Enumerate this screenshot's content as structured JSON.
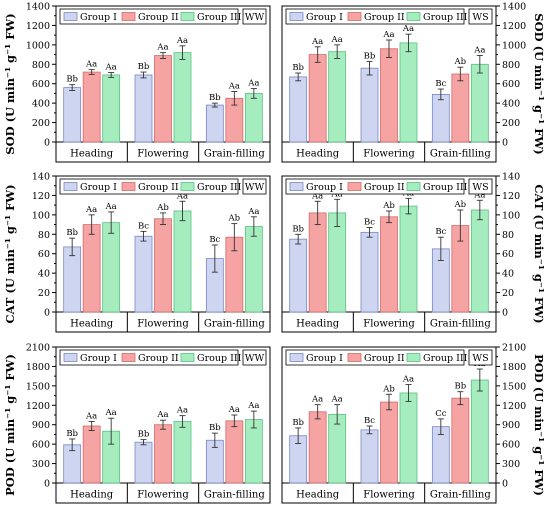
{
  "legend": [
    "Group I",
    "Group II",
    "Group III"
  ],
  "colors": {
    "bar_fills": [
      "#cdd5f0",
      "#f5a3a3",
      "#a5ecbe"
    ],
    "bar_strokes": [
      "#7b86c4",
      "#d46a6a",
      "#5cbf82"
    ]
  },
  "chart_data": [
    {
      "type": "bar",
      "id": "sod-ww",
      "tag": "WW",
      "ylabel": "SOD (U min⁻¹ g⁻¹ FW)",
      "ylim": [
        0,
        1400
      ],
      "yticks": [
        0,
        200,
        400,
        600,
        800,
        1000,
        1200,
        1400
      ],
      "categories": [
        "Heading",
        "Flowering",
        "Grain-filling"
      ],
      "series": [
        {
          "name": "Group I",
          "values": [
            560,
            690,
            380
          ],
          "errors": [
            30,
            30,
            20
          ],
          "labels": [
            "Bb",
            "Bb",
            "Bb"
          ]
        },
        {
          "name": "Group II",
          "values": [
            720,
            890,
            450
          ],
          "errors": [
            25,
            30,
            70
          ],
          "labels": [
            "Aa",
            "Aa",
            "Aa"
          ]
        },
        {
          "name": "Group III",
          "values": [
            690,
            920,
            500
          ],
          "errors": [
            25,
            70,
            50
          ],
          "labels": [
            "Aa",
            "Aa",
            "Aa"
          ]
        }
      ]
    },
    {
      "type": "bar",
      "id": "sod-ws",
      "tag": "WS",
      "ylabel": "SOD (U min⁻¹ g⁻¹ FW)",
      "ylim": [
        0,
        1400
      ],
      "yticks": [
        0,
        200,
        400,
        600,
        800,
        1000,
        1200,
        1400
      ],
      "categories": [
        "Heading",
        "Flowering",
        "Grain-filling"
      ],
      "series": [
        {
          "name": "Group I",
          "values": [
            670,
            760,
            490
          ],
          "errors": [
            40,
            70,
            55
          ],
          "labels": [
            "Bb",
            "Bb",
            "Bc"
          ]
        },
        {
          "name": "Group II",
          "values": [
            900,
            960,
            700
          ],
          "errors": [
            80,
            90,
            70
          ],
          "labels": [
            "Aa",
            "Aa",
            "Ab"
          ]
        },
        {
          "name": "Group III",
          "values": [
            930,
            1020,
            800
          ],
          "errors": [
            70,
            90,
            90
          ],
          "labels": [
            "Aa",
            "Aa",
            "Aa"
          ]
        }
      ]
    },
    {
      "type": "bar",
      "id": "cat-ww",
      "tag": "WW",
      "ylabel": "CAT (U min⁻¹ g⁻¹ FW)",
      "ylim": [
        0,
        140
      ],
      "yticks": [
        0,
        20,
        40,
        60,
        80,
        100,
        120,
        140
      ],
      "categories": [
        "Heading",
        "Flowering",
        "Grain-filling"
      ],
      "series": [
        {
          "name": "Group I",
          "values": [
            67,
            78,
            55
          ],
          "errors": [
            9,
            5,
            14
          ],
          "labels": [
            "Bb",
            "Bc",
            "Bc"
          ]
        },
        {
          "name": "Group II",
          "values": [
            90,
            96,
            77
          ],
          "errors": [
            10,
            6,
            14
          ],
          "labels": [
            "Aa",
            "Ab",
            "Ab"
          ]
        },
        {
          "name": "Group III",
          "values": [
            92,
            104,
            88
          ],
          "errors": [
            11,
            10,
            10
          ],
          "labels": [
            "Aa",
            "Aa",
            "Aa"
          ]
        }
      ]
    },
    {
      "type": "bar",
      "id": "cat-ws",
      "tag": "WS",
      "ylabel": "CAT (U min⁻¹ g⁻¹ FW)",
      "ylim": [
        0,
        140
      ],
      "yticks": [
        0,
        20,
        40,
        60,
        80,
        100,
        120,
        140
      ],
      "categories": [
        "Heading",
        "Flowering",
        "Grain-filling"
      ],
      "series": [
        {
          "name": "Group I",
          "values": [
            75,
            82,
            65
          ],
          "errors": [
            5,
            5,
            12
          ],
          "labels": [
            "Bb",
            "Bc",
            "Bc"
          ]
        },
        {
          "name": "Group II",
          "values": [
            102,
            98,
            89
          ],
          "errors": [
            12,
            6,
            16
          ],
          "labels": [
            "Aa",
            "Ab",
            "Ab"
          ]
        },
        {
          "name": "Group III",
          "values": [
            102,
            109,
            105
          ],
          "errors": [
            14,
            8,
            10
          ],
          "labels": [
            "Aa",
            "Aa",
            "Aa"
          ]
        }
      ]
    },
    {
      "type": "bar",
      "id": "pod-ww",
      "tag": "WW",
      "ylabel": "POD (U min⁻¹ g⁻¹ FW)",
      "ylim": [
        0,
        2100
      ],
      "yticks": [
        0,
        300,
        600,
        900,
        1200,
        1500,
        1800,
        2100
      ],
      "categories": [
        "Heading",
        "Flowering",
        "Grain-filling"
      ],
      "series": [
        {
          "name": "Group I",
          "values": [
            590,
            630,
            660
          ],
          "errors": [
            90,
            40,
            110
          ],
          "labels": [
            "Bb",
            "Bb",
            "Bb"
          ]
        },
        {
          "name": "Group II",
          "values": [
            880,
            900,
            960
          ],
          "errors": [
            70,
            70,
            90
          ],
          "labels": [
            "Aa",
            "Aa",
            "Aa"
          ]
        },
        {
          "name": "Group III",
          "values": [
            800,
            950,
            980
          ],
          "errors": [
            200,
            90,
            130
          ],
          "labels": [
            "Aa",
            "Aa",
            "Aa"
          ]
        }
      ]
    },
    {
      "type": "bar",
      "id": "pod-ws",
      "tag": "WS",
      "ylabel": "POD (U min⁻¹ g⁻¹ FW)",
      "ylim": [
        0,
        2100
      ],
      "yticks": [
        0,
        300,
        600,
        900,
        1200,
        1500,
        1800,
        2100
      ],
      "categories": [
        "Heading",
        "Flowering",
        "Grain-filling"
      ],
      "series": [
        {
          "name": "Group I",
          "values": [
            730,
            820,
            870
          ],
          "errors": [
            120,
            60,
            120
          ],
          "labels": [
            "Bb",
            "Bc",
            "Cc"
          ]
        },
        {
          "name": "Group II",
          "values": [
            1100,
            1250,
            1310
          ],
          "errors": [
            110,
            120,
            100
          ],
          "labels": [
            "Aa",
            "Ab",
            "Bb"
          ]
        },
        {
          "name": "Group III",
          "values": [
            1060,
            1390,
            1590
          ],
          "errors": [
            150,
            130,
            170
          ],
          "labels": [
            "Aa",
            "Aa",
            "Aa"
          ]
        }
      ]
    }
  ]
}
